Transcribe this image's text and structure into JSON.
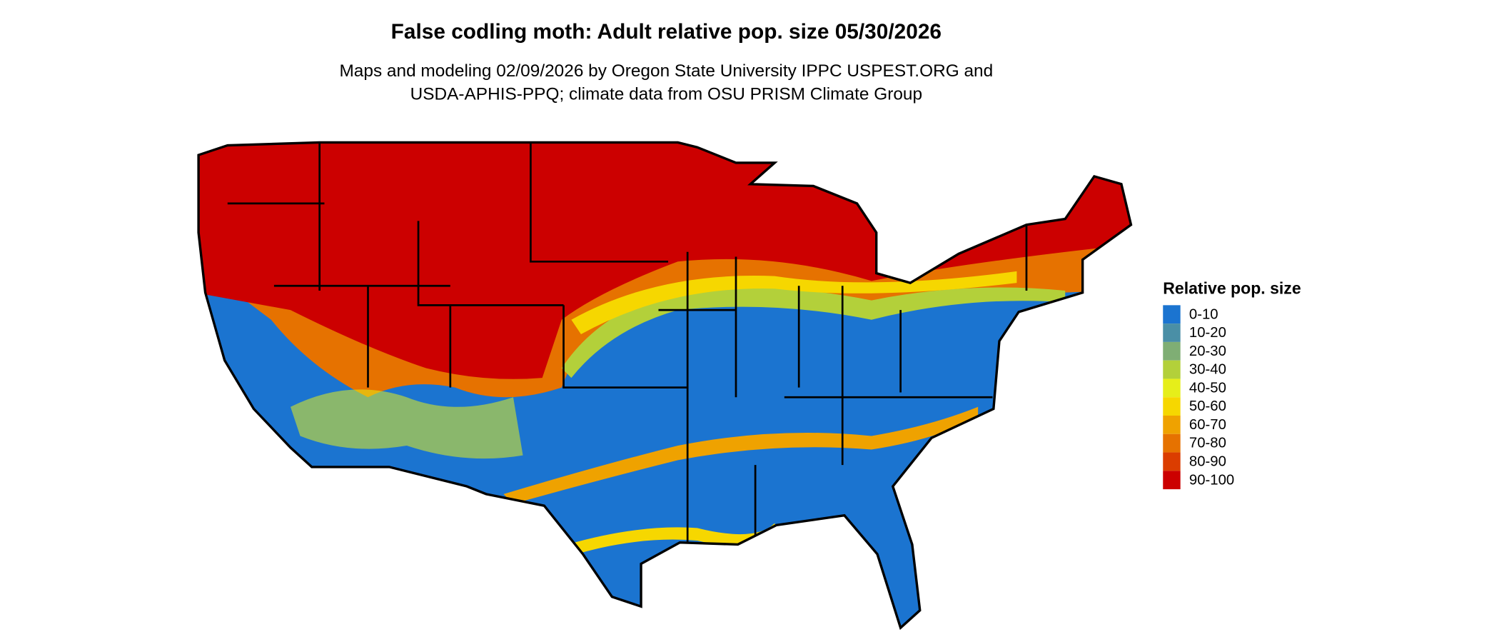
{
  "title": "False codling moth: Adult relative pop. size 05/30/2026",
  "subtitle": [
    "Maps and modeling 02/09/2026 by Oregon State University IPPC USPEST.ORG and",
    "USDA-APHIS-PPQ; climate data from OSU PRISM Climate Group"
  ],
  "legend": {
    "title": "Relative pop. size",
    "items": [
      {
        "label": "0-10",
        "color": "#1b74d0"
      },
      {
        "label": "10-20",
        "color": "#4a8fa6"
      },
      {
        "label": "20-30",
        "color": "#7fae74"
      },
      {
        "label": "30-40",
        "color": "#b3d03a"
      },
      {
        "label": "40-50",
        "color": "#e6ee1a"
      },
      {
        "label": "50-60",
        "color": "#f6d700"
      },
      {
        "label": "60-70",
        "color": "#efa200"
      },
      {
        "label": "70-80",
        "color": "#e67200"
      },
      {
        "label": "80-90",
        "color": "#db3d00"
      },
      {
        "label": "90-100",
        "color": "#cc0000"
      }
    ]
  }
}
